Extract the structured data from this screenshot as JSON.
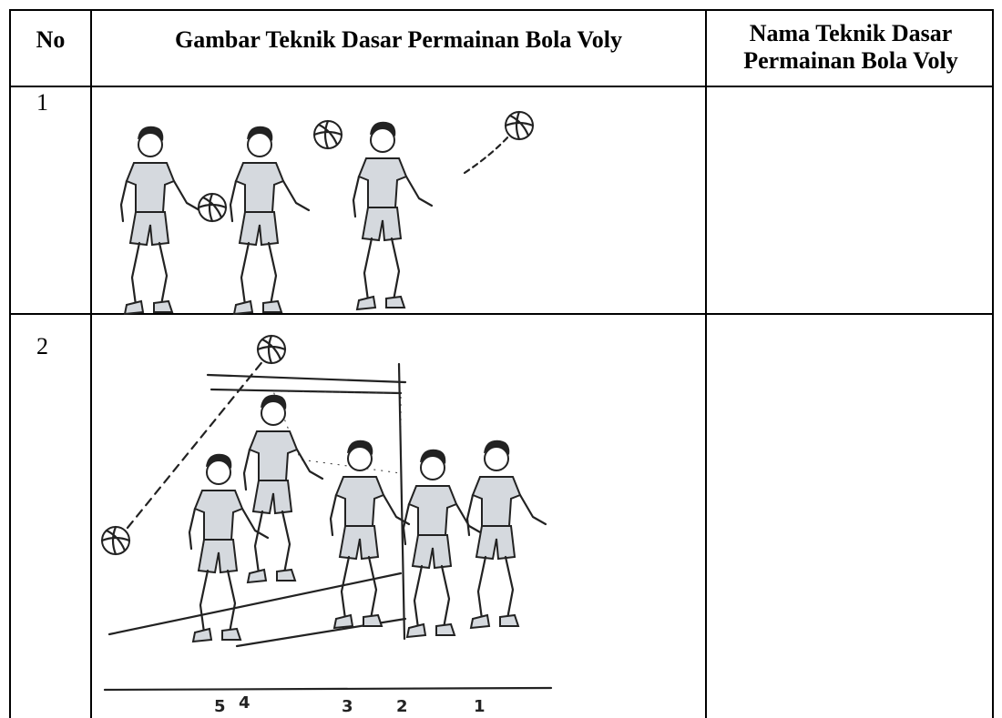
{
  "table": {
    "header": [
      "No",
      "Gambar Teknik Dasar Permainan Bola Voly",
      "Nama Teknik Dasar Permainan Bola Voly"
    ],
    "rows": [
      {
        "no": "1",
        "name": ""
      },
      {
        "no": "2",
        "name": ""
      }
    ],
    "figure_labels": [
      "5",
      "4",
      "3",
      "2",
      "1"
    ]
  }
}
